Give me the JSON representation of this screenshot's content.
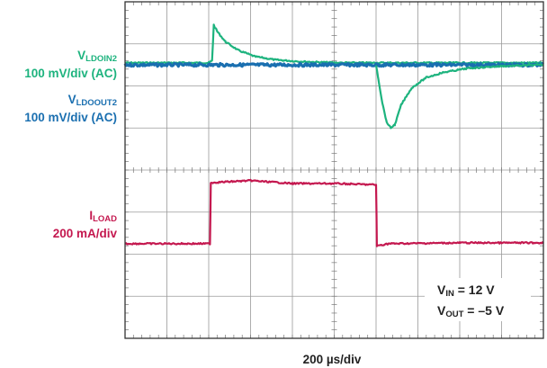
{
  "chart_data": {
    "type": "line",
    "title": "",
    "xlabel": "200 µs/div",
    "divisions": {
      "x": 10,
      "y": 8
    },
    "xlim_div": [
      0,
      10
    ],
    "ylim_div": [
      0,
      8
    ],
    "series": [
      {
        "name": "VLDOIN2",
        "label_main": "V",
        "label_sub": "LDOIN2",
        "scale": "100 mV/div (AC)",
        "color": "#1db37e",
        "points": [
          [
            0,
            6.55
          ],
          [
            2.0,
            6.55
          ],
          [
            2.08,
            6.6
          ],
          [
            2.12,
            7.45
          ],
          [
            2.2,
            7.3
          ],
          [
            2.4,
            7.05
          ],
          [
            2.7,
            6.85
          ],
          [
            3.1,
            6.7
          ],
          [
            3.6,
            6.62
          ],
          [
            4.2,
            6.58
          ],
          [
            4.8,
            6.56
          ],
          [
            5.15,
            6.55
          ],
          [
            5.6,
            6.55
          ],
          [
            6.0,
            6.55
          ],
          [
            10,
            6.55
          ]
        ]
      },
      {
        "name": "VLDOOUT2",
        "label_main": "V",
        "label_sub": "LDOOUT2",
        "scale": "100 mV/div (AC)",
        "color": "#1a6fb0",
        "points": [
          [
            0,
            6.5
          ],
          [
            10,
            6.5
          ]
        ]
      },
      {
        "name": "VLDOIN2-undershoot",
        "label_main": "",
        "label_sub": "",
        "scale": "",
        "color": "#1db37e",
        "points": [
          [
            6.0,
            6.5
          ],
          [
            6.05,
            6.2
          ],
          [
            6.15,
            5.6
          ],
          [
            6.25,
            5.15
          ],
          [
            6.35,
            5.0
          ],
          [
            6.45,
            5.08
          ],
          [
            6.6,
            5.55
          ],
          [
            6.85,
            5.95
          ],
          [
            7.2,
            6.2
          ],
          [
            7.6,
            6.32
          ],
          [
            8.2,
            6.42
          ],
          [
            9.0,
            6.47
          ],
          [
            10,
            6.5
          ]
        ]
      },
      {
        "name": "ILOAD",
        "label_main": "I",
        "label_sub": "LOAD",
        "scale": "200 mA/div",
        "color": "#c4184f",
        "points": [
          [
            0,
            2.25
          ],
          [
            2.03,
            2.25
          ],
          [
            2.05,
            3.7
          ],
          [
            3.0,
            3.75
          ],
          [
            4.0,
            3.68
          ],
          [
            5.0,
            3.68
          ],
          [
            6.0,
            3.65
          ],
          [
            6.02,
            2.2
          ],
          [
            6.3,
            2.25
          ],
          [
            8.0,
            2.27
          ],
          [
            10,
            2.27
          ]
        ]
      }
    ],
    "annotation": {
      "vin_main": "V",
      "vin_sub": "IN",
      "vin_val": " = 12 V",
      "vout_main": "V",
      "vout_sub": "OUT",
      "vout_val": " = –5 V"
    },
    "grid": true
  }
}
